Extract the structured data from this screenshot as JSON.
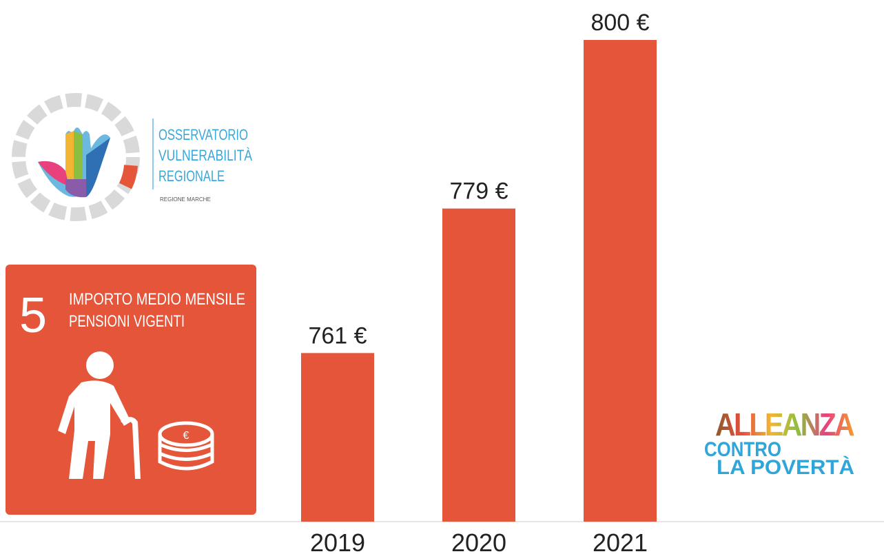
{
  "chart_data": {
    "type": "bar",
    "categories": [
      "2019",
      "2020",
      "2021"
    ],
    "values": [
      761,
      779,
      800
    ],
    "value_labels": [
      "761 €",
      "779 €",
      "800 €"
    ],
    "color": "#e5553a",
    "ylim": [
      740,
      800
    ]
  },
  "logo": {
    "line1": "OSSERVATORIO",
    "line2": "VULNERABILITÀ",
    "line3": "REGIONALE",
    "sub": "REGIONE MARCHE"
  },
  "card": {
    "number": "5",
    "line1": "IMPORTO MEDIO MENSILE",
    "line2": "PENSIONI VIGENTI"
  },
  "brand": {
    "line1": "ALLEANZA",
    "line2": "CONTRO",
    "line3": "LA POVERTÀ"
  }
}
